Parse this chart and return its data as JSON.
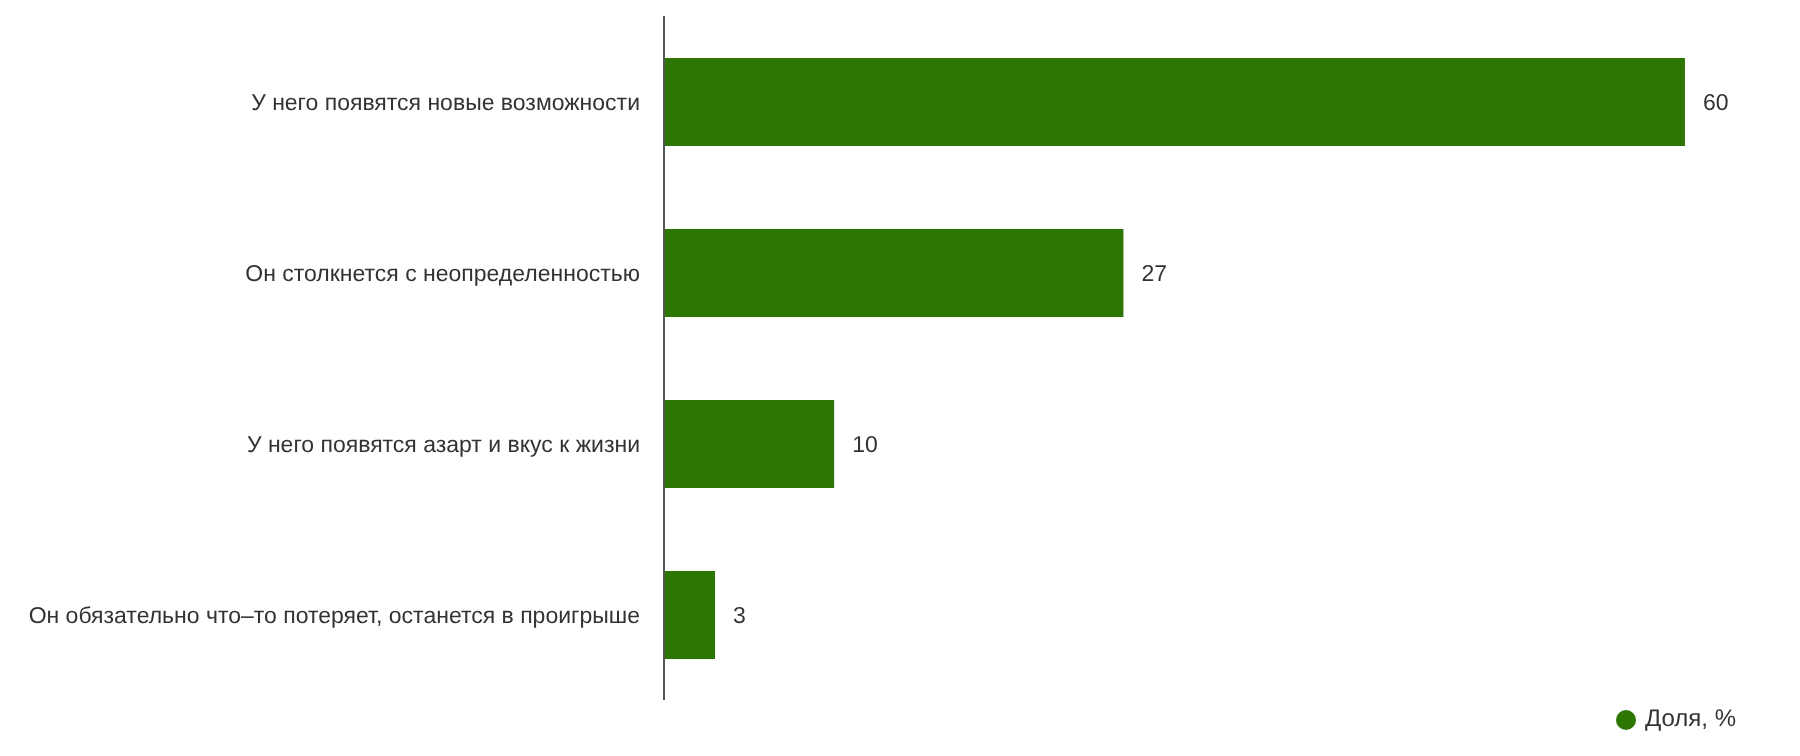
{
  "chart_data": {
    "type": "bar",
    "orientation": "horizontal",
    "categories": [
      "У него появятся новые возможности",
      "Он столкнется с неопределенностью",
      "У него появятся азарт и вкус к жизни",
      "Он обязательно что–то потеряет, останется в проигрыше"
    ],
    "series": [
      {
        "name": "Доля, %",
        "color": "#2e7604",
        "values": [
          60,
          27,
          10,
          3
        ]
      }
    ],
    "data_labels": true,
    "legend": "bottom right",
    "grid": false
  }
}
